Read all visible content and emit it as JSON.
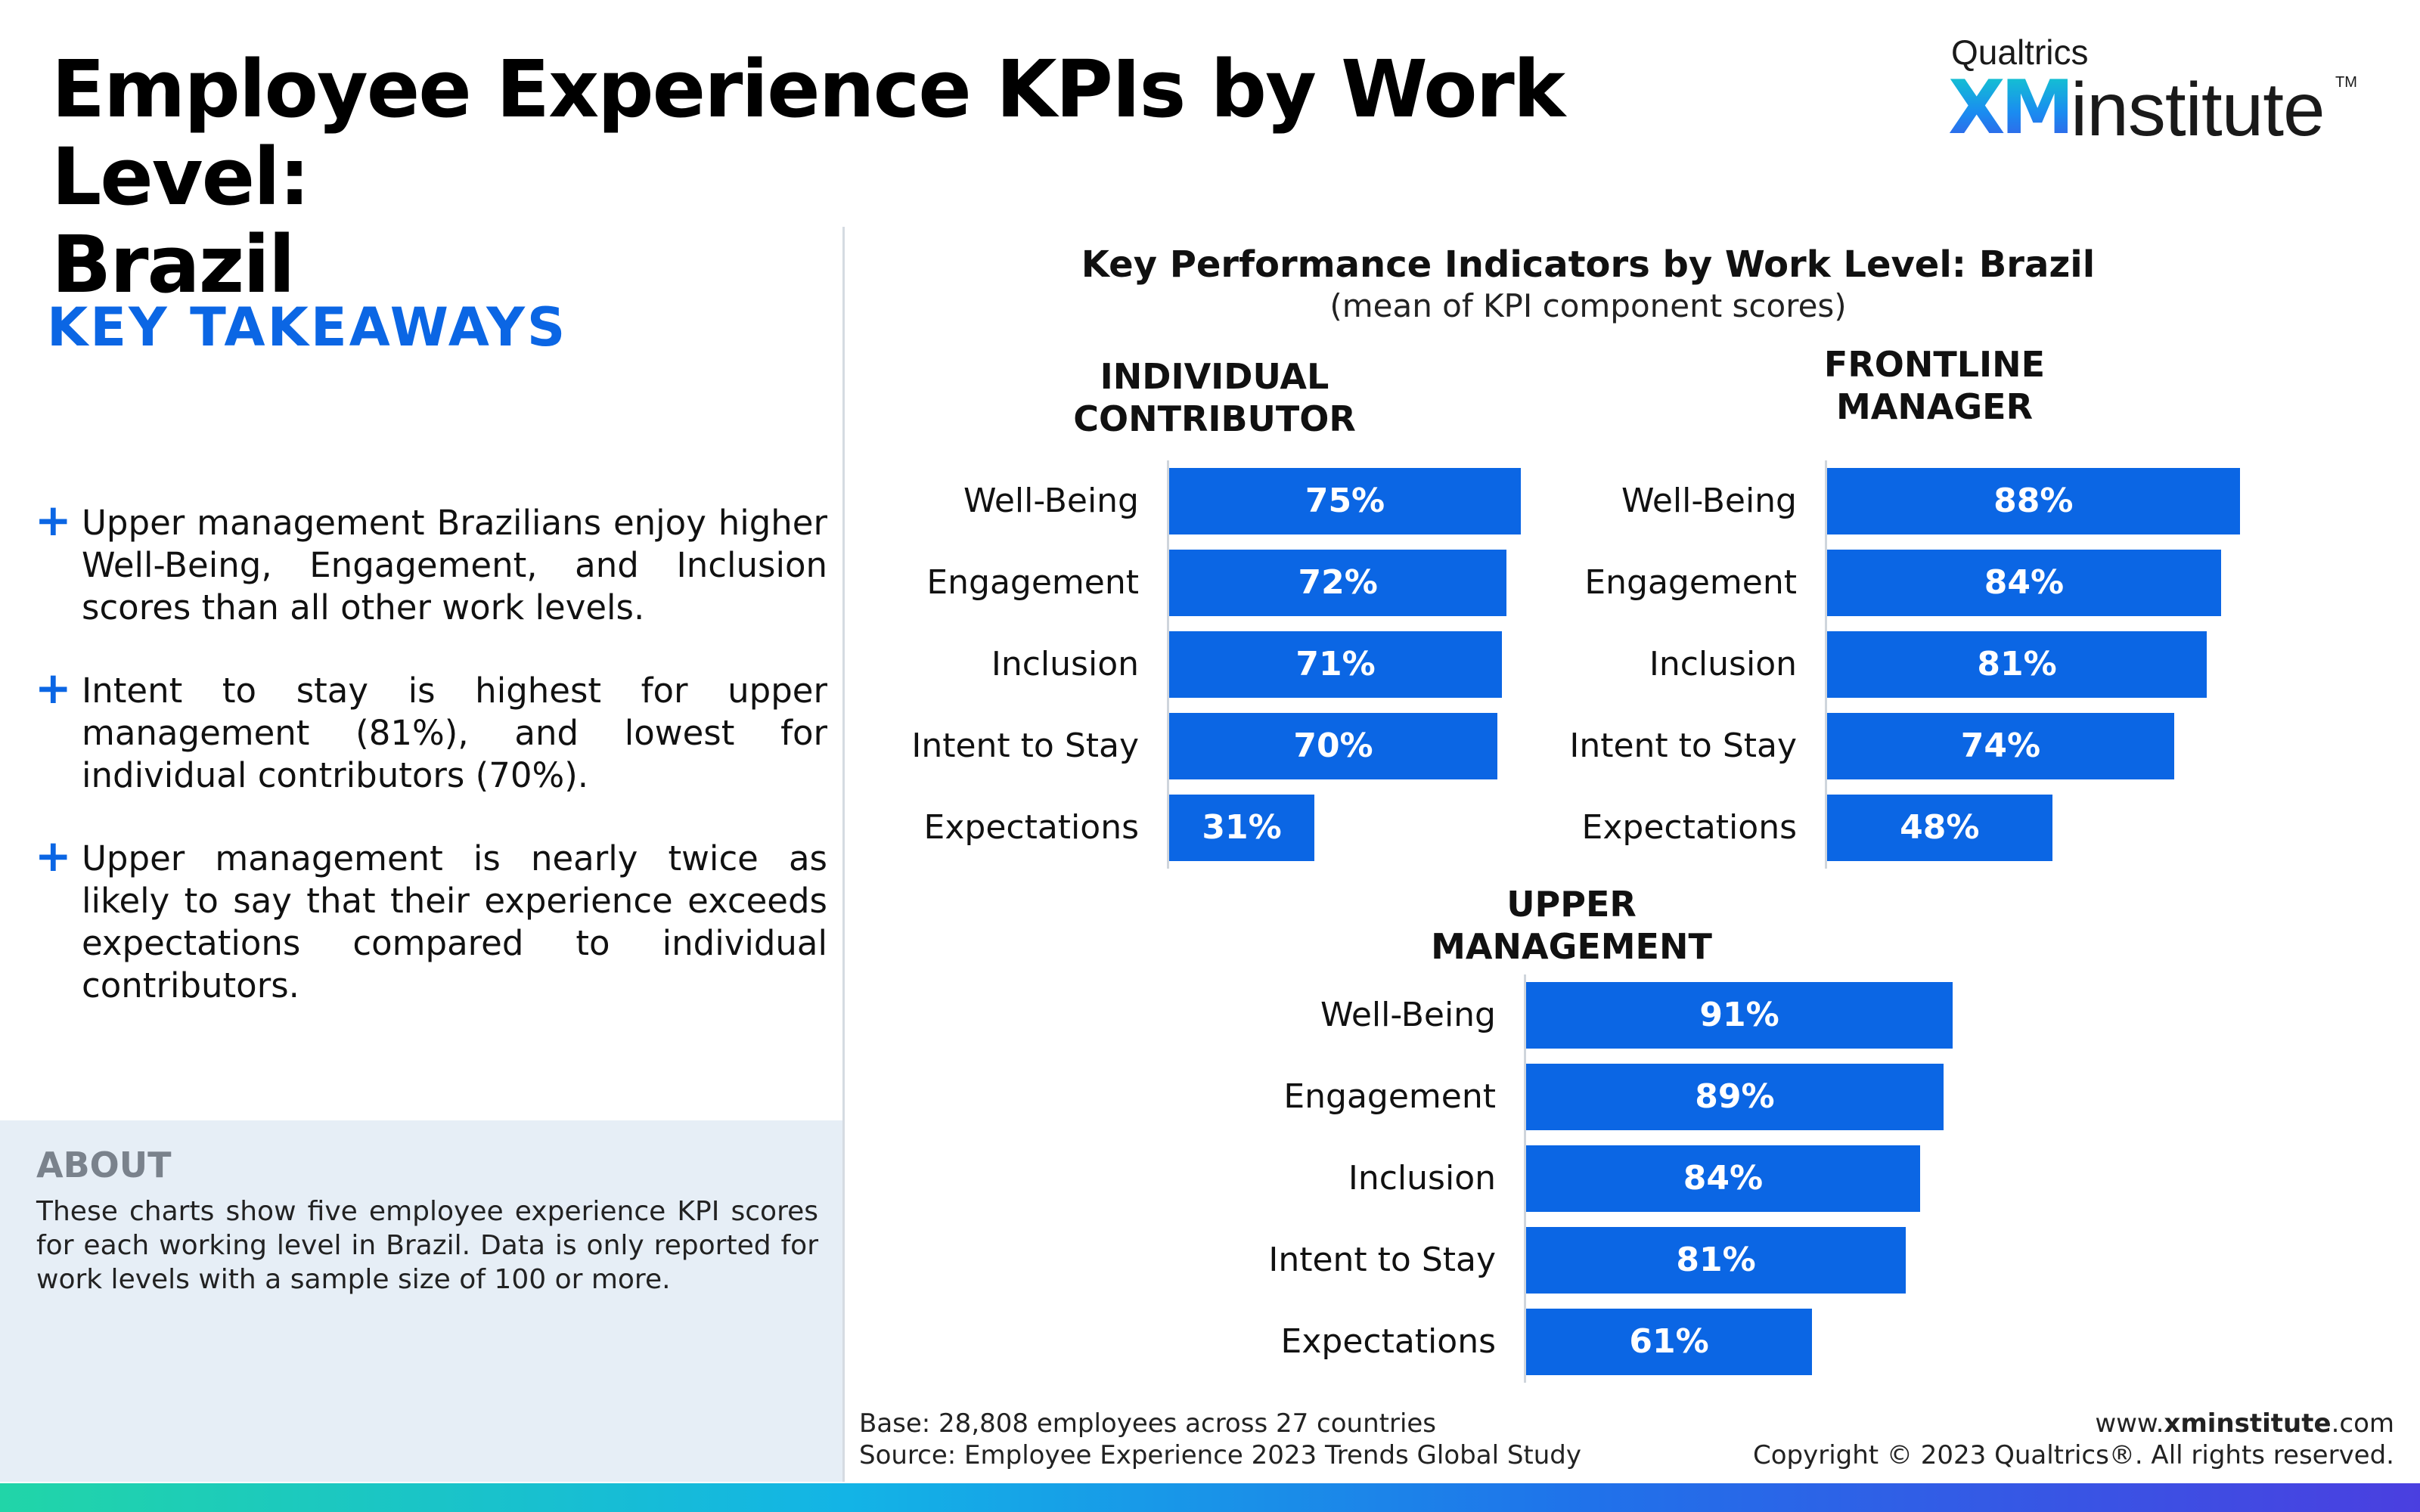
{
  "header": {
    "title_line1": "Employee Experience KPIs by Work Level:",
    "title_line2": "Brazil"
  },
  "logo": {
    "brand": "Qualtrics",
    "xm": "XM",
    "institute": "institute",
    "tm": "TM"
  },
  "takeaways": {
    "heading": "KEY TAKEAWAYS",
    "plus_icon": "plus-icon",
    "items": [
      "Upper management Brazilians enjoy higher Well-Being, Engagement, and Inclusion scores than all other work levels.",
      "Intent to stay is highest for upper management (81%), and lowest for individual contributors (70%).",
      "Upper management is nearly twice as likely to say that their experience exceeds expectations compared to individual contributors."
    ]
  },
  "about": {
    "title": "ABOUT",
    "text": "These charts show five employee experience KPI scores for each working level in Brazil. Data is only reported for work levels with a sample size of 100 or more."
  },
  "chart_data": {
    "type": "bar",
    "orientation": "horizontal",
    "title": "Key Performance Indicators by Work Level: Brazil",
    "subtitle": "(mean of KPI component scores)",
    "categories": [
      "Well-Being",
      "Engagement",
      "Inclusion",
      "Intent to Stay",
      "Expectations"
    ],
    "unit": "%",
    "bar_color": "#0b66e4",
    "panels": [
      {
        "name_line1": "INDIVIDUAL",
        "name_line2": "CONTRIBUTOR",
        "values": [
          75,
          72,
          71,
          70,
          31
        ]
      },
      {
        "name_line1": "FRONTLINE",
        "name_line2": "MANAGER",
        "values": [
          88,
          84,
          81,
          74,
          48
        ]
      },
      {
        "name_line1": "UPPER",
        "name_line2": "MANAGEMENT",
        "values": [
          91,
          89,
          84,
          81,
          61
        ]
      }
    ]
  },
  "footer": {
    "base": "Base: 28,808 employees across 27 countries",
    "source": "Source: Employee Experience 2023 Trends Global Study",
    "url_prefix": "www.",
    "url_bold": "xminstitute",
    "url_suffix": ".com",
    "copyright": "Copyright © 2023 Qualtrics®. All rights reserved."
  },
  "colors": {
    "accent": "#0b66e4",
    "about_bg": "#e6eef6",
    "about_title": "#7a828c"
  }
}
